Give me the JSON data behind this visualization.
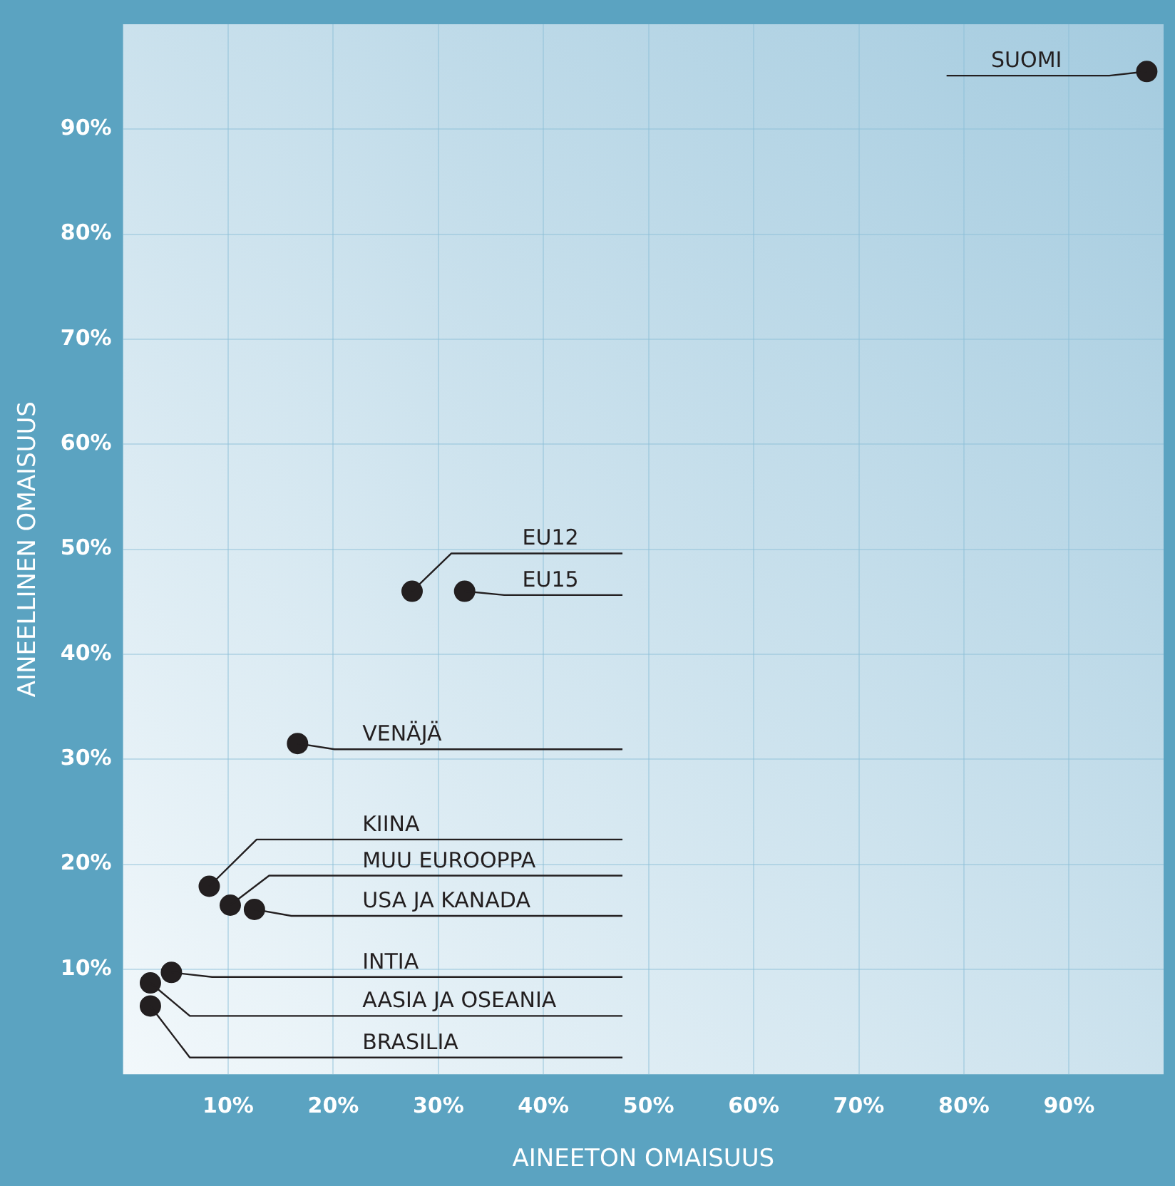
{
  "chart_data": {
    "type": "scatter",
    "xlabel": "AINEETON OMAISUUS",
    "ylabel": "AINEELLINEN OMAISUUS",
    "marker": "circle",
    "grid": true,
    "legend": false,
    "xlim": [
      0,
      99
    ],
    "ylim": [
      0,
      100
    ],
    "xticks": [
      {
        "value": 10,
        "label": "10%"
      },
      {
        "value": 20,
        "label": "20%"
      },
      {
        "value": 30,
        "label": "30%"
      },
      {
        "value": 40,
        "label": "40%"
      },
      {
        "value": 50,
        "label": "50%"
      },
      {
        "value": 60,
        "label": "60%"
      },
      {
        "value": 70,
        "label": "70%"
      },
      {
        "value": 80,
        "label": "80%"
      },
      {
        "value": 90,
        "label": "90%"
      }
    ],
    "yticks": [
      {
        "value": 10,
        "label": "10%"
      },
      {
        "value": 20,
        "label": "20%"
      },
      {
        "value": 30,
        "label": "30%"
      },
      {
        "value": 40,
        "label": "40%"
      },
      {
        "value": 50,
        "label": "50%"
      },
      {
        "value": 60,
        "label": "60%"
      },
      {
        "value": 70,
        "label": "70%"
      },
      {
        "value": 80,
        "label": "80%"
      },
      {
        "value": 90,
        "label": "90%"
      }
    ],
    "series": [
      {
        "name": "SUOMI",
        "color": "#231f20",
        "x": [
          97.4
        ],
        "values": [
          95.5
        ]
      },
      {
        "name": "EU12",
        "color": "#231f20",
        "x": [
          27.5
        ],
        "values": [
          46
        ]
      },
      {
        "name": "EU15",
        "color": "#231f20",
        "x": [
          32.5
        ],
        "values": [
          46
        ]
      },
      {
        "name": "VENÄJÄ",
        "color": "#231f20",
        "x": [
          16.6
        ],
        "values": [
          31.5
        ]
      },
      {
        "name": "KIINA",
        "color": "#231f20",
        "x": [
          8.2
        ],
        "values": [
          17.9
        ]
      },
      {
        "name": "MUU EUROOPPA",
        "color": "#231f20",
        "x": [
          10.2
        ],
        "values": [
          16.1
        ]
      },
      {
        "name": "USA JA KANADA",
        "color": "#231f20",
        "x": [
          12.5
        ],
        "values": [
          15.7
        ]
      },
      {
        "name": "INTIA",
        "color": "#231f20",
        "x": [
          4.6
        ],
        "values": [
          9.7
        ]
      },
      {
        "name": "AASIA JA OSEANIA",
        "color": "#231f20",
        "x": [
          2.6
        ],
        "values": [
          8.7
        ]
      },
      {
        "name": "BRASILIA",
        "color": "#231f20",
        "x": [
          2.6
        ],
        "values": [
          6.5
        ]
      }
    ]
  }
}
